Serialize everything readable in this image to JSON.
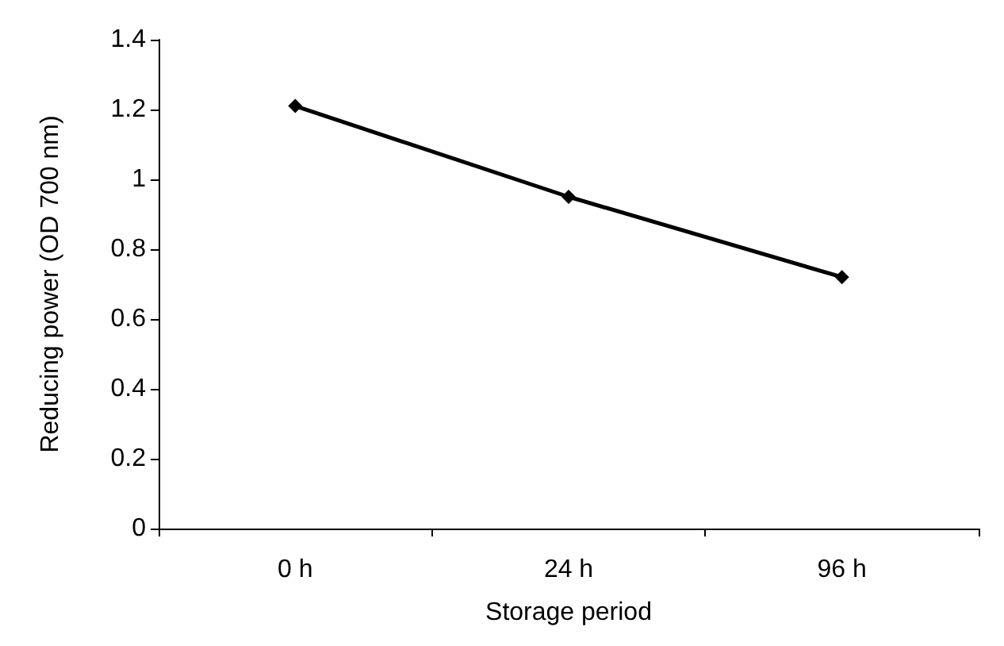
{
  "chart_data": {
    "type": "line",
    "xlabel": "Storage period",
    "ylabel": "Reducing power (OD 700 nm)",
    "categories": [
      "0 h",
      "24 h",
      "96 h"
    ],
    "series": [
      {
        "color": "#000000",
        "values": [
          1.21,
          0.95,
          0.72
        ]
      }
    ],
    "ylim": [
      0,
      1.4
    ],
    "yticks": [
      0,
      0.2,
      0.4,
      0.6,
      0.8,
      1,
      1.2,
      1.4
    ],
    "grid": false,
    "marker": "diamond",
    "line_style": "solid"
  }
}
